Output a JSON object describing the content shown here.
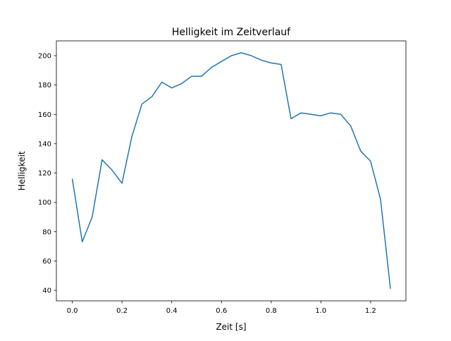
{
  "chart_data": {
    "type": "line",
    "title": "Helligkeit im Zeitverlauf",
    "xlabel": "Zeit [s]",
    "ylabel": "Helligkeit",
    "xlim": [
      -0.064,
      1.342
    ],
    "ylim": [
      32.8,
      210.1
    ],
    "xticks": [
      0.0,
      0.2,
      0.4,
      0.6,
      0.8,
      1.0,
      1.2
    ],
    "xtick_labels": [
      "0.0",
      "0.2",
      "0.4",
      "0.6",
      "0.8",
      "1.0",
      "1.2"
    ],
    "yticks": [
      40,
      60,
      80,
      100,
      120,
      140,
      160,
      180,
      200
    ],
    "ytick_labels": [
      "40",
      "60",
      "80",
      "100",
      "120",
      "140",
      "160",
      "180",
      "200"
    ],
    "grid": false,
    "series": [
      {
        "name": "Helligkeit",
        "color": "#1f77b4",
        "x": [
          0.0,
          0.04,
          0.08,
          0.12,
          0.16,
          0.2,
          0.24,
          0.28,
          0.32,
          0.36,
          0.4,
          0.44,
          0.48,
          0.52,
          0.56,
          0.6,
          0.64,
          0.68,
          0.72,
          0.76,
          0.8,
          0.84,
          0.88,
          0.92,
          0.96,
          1.0,
          1.04,
          1.08,
          1.12,
          1.16,
          1.2,
          1.24,
          1.28
        ],
        "y": [
          116,
          73,
          90,
          129,
          122,
          113,
          145,
          167,
          172,
          182,
          178,
          181,
          186,
          186,
          192,
          196,
          200,
          202,
          200,
          197,
          195,
          194,
          157,
          161,
          160,
          159,
          161,
          160,
          152,
          135,
          128,
          102,
          41
        ]
      }
    ]
  }
}
